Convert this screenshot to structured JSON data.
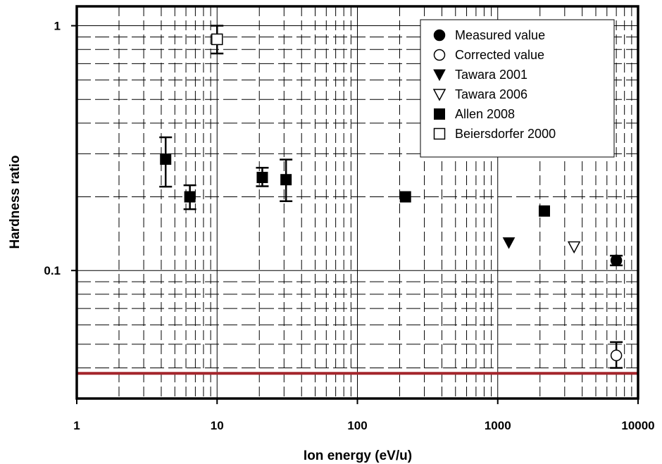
{
  "chart_data": {
    "type": "scatter",
    "xlabel": "Ion energy (eV/u)",
    "ylabel": "Hardness ratio",
    "x_scale": "log",
    "y_scale": "log",
    "xlim": [
      1,
      10000
    ],
    "ylim": [
      0.03,
      1.2
    ],
    "x_ticks": [
      {
        "value": 1,
        "label": "1"
      },
      {
        "value": 10,
        "label": "10"
      },
      {
        "value": 100,
        "label": "100"
      },
      {
        "value": 1000,
        "label": "1000"
      },
      {
        "value": 10000,
        "label": "10000"
      }
    ],
    "y_ticks": [
      {
        "value": 0.1,
        "label": "0.1"
      },
      {
        "value": 1,
        "label": "1"
      }
    ],
    "grid": true,
    "legend_position": "top-right",
    "reference_line": {
      "y": 0.038,
      "color": "#a4262c"
    },
    "series": [
      {
        "name": "Measured value",
        "marker": "filled-circle",
        "points": [
          {
            "x": 7000,
            "y": 0.11,
            "err_low": 0.105,
            "err_high": 0.115
          }
        ]
      },
      {
        "name": "Corrected value",
        "marker": "open-circle",
        "points": [
          {
            "x": 7000,
            "y": 0.045,
            "err_low": 0.04,
            "err_high": 0.051
          }
        ]
      },
      {
        "name": "Tawara 2001",
        "marker": "filled-triangle-down",
        "points": [
          {
            "x": 1200,
            "y": 0.13
          }
        ]
      },
      {
        "name": "Tawara 2006",
        "marker": "open-triangle-down",
        "points": [
          {
            "x": 3500,
            "y": 0.125
          }
        ]
      },
      {
        "name": "Allen 2008",
        "marker": "filled-square",
        "points": [
          {
            "x": 4.3,
            "y": 0.285,
            "err_low": 0.22,
            "err_high": 0.35
          },
          {
            "x": 6.4,
            "y": 0.2,
            "err_low": 0.178,
            "err_high": 0.223
          },
          {
            "x": 21,
            "y": 0.24,
            "err_low": 0.221,
            "err_high": 0.263
          },
          {
            "x": 31,
            "y": 0.235,
            "err_low": 0.192,
            "err_high": 0.284
          },
          {
            "x": 220,
            "y": 0.2
          },
          {
            "x": 2150,
            "y": 0.175
          }
        ]
      },
      {
        "name": "Beiersdorfer 2000",
        "marker": "open-square",
        "points": [
          {
            "x": 10,
            "y": 0.88,
            "err_low": 0.77,
            "err_high": 1.0
          }
        ]
      }
    ]
  }
}
